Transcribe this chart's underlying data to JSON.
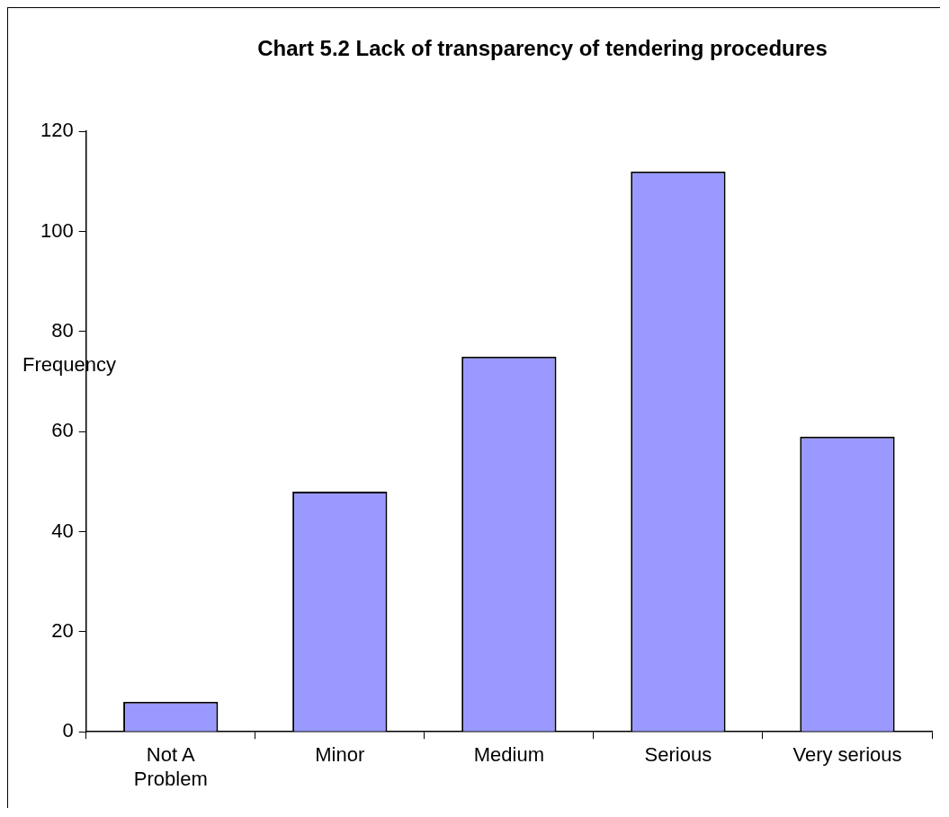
{
  "chart_data": {
    "type": "bar",
    "title": "Chart 5.2 Lack of transparency of tendering procedures",
    "ylabel": "Frequency",
    "categories": [
      "Not A Problem",
      "Minor",
      "Medium",
      "Serious",
      "Very serious"
    ],
    "values": [
      6,
      48,
      75,
      112,
      59
    ],
    "color": "#9999ff",
    "ylim": [
      0,
      120
    ],
    "yticks": [
      0,
      20,
      40,
      60,
      80,
      100,
      120
    ],
    "grid": false,
    "legend": false
  }
}
